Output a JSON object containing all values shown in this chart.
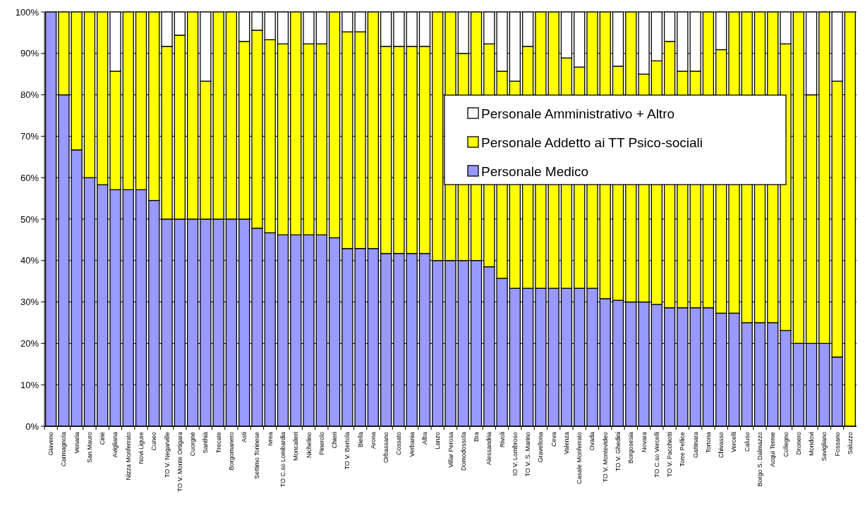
{
  "chart_data": {
    "type": "bar",
    "stacked": true,
    "categories": [
      "Giaveno",
      "Carmagnola",
      "Venaria",
      "San Mauro",
      "Ciriè",
      "Avigliana",
      "Nizza Monferrato",
      "Novi Ligure",
      "Cuneo",
      "TO V. Negarville",
      "TO V. Monte Ortigara",
      "Cuorgnè",
      "Santhià",
      "Trecate",
      "Borgomanero",
      "Asti",
      "Settimo Torinese",
      "Ivrea",
      "TO C.so Lombardia",
      "Moncalieri",
      "Nichelino",
      "Pinerolo",
      "Chieri",
      "TO V. Bertola",
      "Biella",
      "Arona",
      "Orbassano",
      "Cossato",
      "Verbania",
      "Alba",
      "Lanzo",
      "Villar Perosa",
      "Domodossola",
      "Bra",
      "Alessandria",
      "Rivoli",
      "tO V. Lombroso",
      "TO V. S. Marino",
      "Gravellona",
      "Ceva",
      "Valenza",
      "Casale Monferrato",
      "Ovada",
      "TO V. Montevideo",
      "TO V. Ghedini",
      "Borgosesia",
      "Novara",
      "TO C.so Vercelli",
      "TO V. Pacchiotti",
      "Torre Pellice",
      "Gattinara",
      "Tortona",
      "Chivasso",
      "Vercelli",
      "Caluso",
      "Borgo S. Dalmazzo",
      "Acqui Terme",
      "Collegno",
      "Dronero",
      "Mondovi",
      "Savigliano",
      "Fossano",
      "Saluzzo"
    ],
    "series": [
      {
        "name": "Personale Medico",
        "color": "#9999ff",
        "values": [
          100,
          80,
          66.7,
          60,
          58.3,
          57.1,
          57.1,
          57.1,
          54.5,
          50,
          50,
          50,
          50,
          50,
          50,
          50,
          47.8,
          46.7,
          46.2,
          46.2,
          46.2,
          46.2,
          45.5,
          42.9,
          42.9,
          42.9,
          41.7,
          41.7,
          41.7,
          41.7,
          40,
          40,
          40,
          40,
          38.5,
          35.7,
          33.3,
          33.3,
          33.3,
          33.3,
          33.3,
          33.3,
          33.3,
          30.8,
          30.4,
          30,
          30,
          29.4,
          28.6,
          28.6,
          28.6,
          28.6,
          27.3,
          27.3,
          25,
          25,
          25,
          23.1,
          20,
          20,
          20,
          16.7,
          0
        ]
      },
      {
        "name": "Personale Addetto ai TT Psico-sociali",
        "color": "#ffff00",
        "values": [
          0,
          20,
          33.3,
          40,
          41.7,
          28.6,
          42.9,
          42.9,
          45.5,
          41.7,
          44.4,
          50,
          33.3,
          50,
          50,
          42.9,
          47.8,
          46.6,
          46.1,
          53.8,
          46.1,
          46.1,
          54.5,
          52.3,
          52.3,
          57.1,
          50,
          50,
          50,
          50,
          60,
          60,
          50,
          60,
          53.8,
          50,
          50,
          58.4,
          66.7,
          66.7,
          55.6,
          53.4,
          66.7,
          69.2,
          56.5,
          70,
          55,
          58.8,
          64.3,
          57.1,
          57.1,
          71.4,
          63.6,
          72.7,
          75,
          75,
          75,
          69.2,
          80,
          60,
          80,
          66.6,
          100
        ]
      },
      {
        "name": "Personale Amministrativo + Altro",
        "color": "#ffffff",
        "values": [
          0,
          0,
          0,
          0,
          0,
          14.3,
          0,
          0,
          0,
          8.3,
          5.6,
          0,
          16.7,
          0,
          0,
          7.1,
          4.4,
          6.7,
          7.7,
          0,
          7.7,
          7.7,
          0,
          4.8,
          4.8,
          0,
          8.3,
          8.3,
          8.3,
          8.3,
          0,
          0,
          10,
          0,
          7.7,
          14.3,
          16.7,
          8.3,
          0,
          0,
          11.1,
          13.3,
          0,
          0,
          13.1,
          0,
          15,
          11.8,
          7.1,
          14.3,
          14.3,
          0,
          9.1,
          0,
          0,
          0,
          0,
          7.7,
          0,
          20,
          0,
          16.7,
          0
        ]
      }
    ],
    "ylim": [
      0,
      100
    ],
    "yticks": [
      {
        "value": 0,
        "label": "0%"
      },
      {
        "value": 10,
        "label": "10%"
      },
      {
        "value": 20,
        "label": "20%"
      },
      {
        "value": 30,
        "label": "30%"
      },
      {
        "value": 40,
        "label": "40%"
      },
      {
        "value": 50,
        "label": "50%"
      },
      {
        "value": 60,
        "label": "60%"
      },
      {
        "value": 70,
        "label": "70%"
      },
      {
        "value": 80,
        "label": "80%"
      },
      {
        "value": 90,
        "label": "90%"
      },
      {
        "value": 100,
        "label": "100%"
      }
    ],
    "grid": "y",
    "legend": "top right"
  }
}
